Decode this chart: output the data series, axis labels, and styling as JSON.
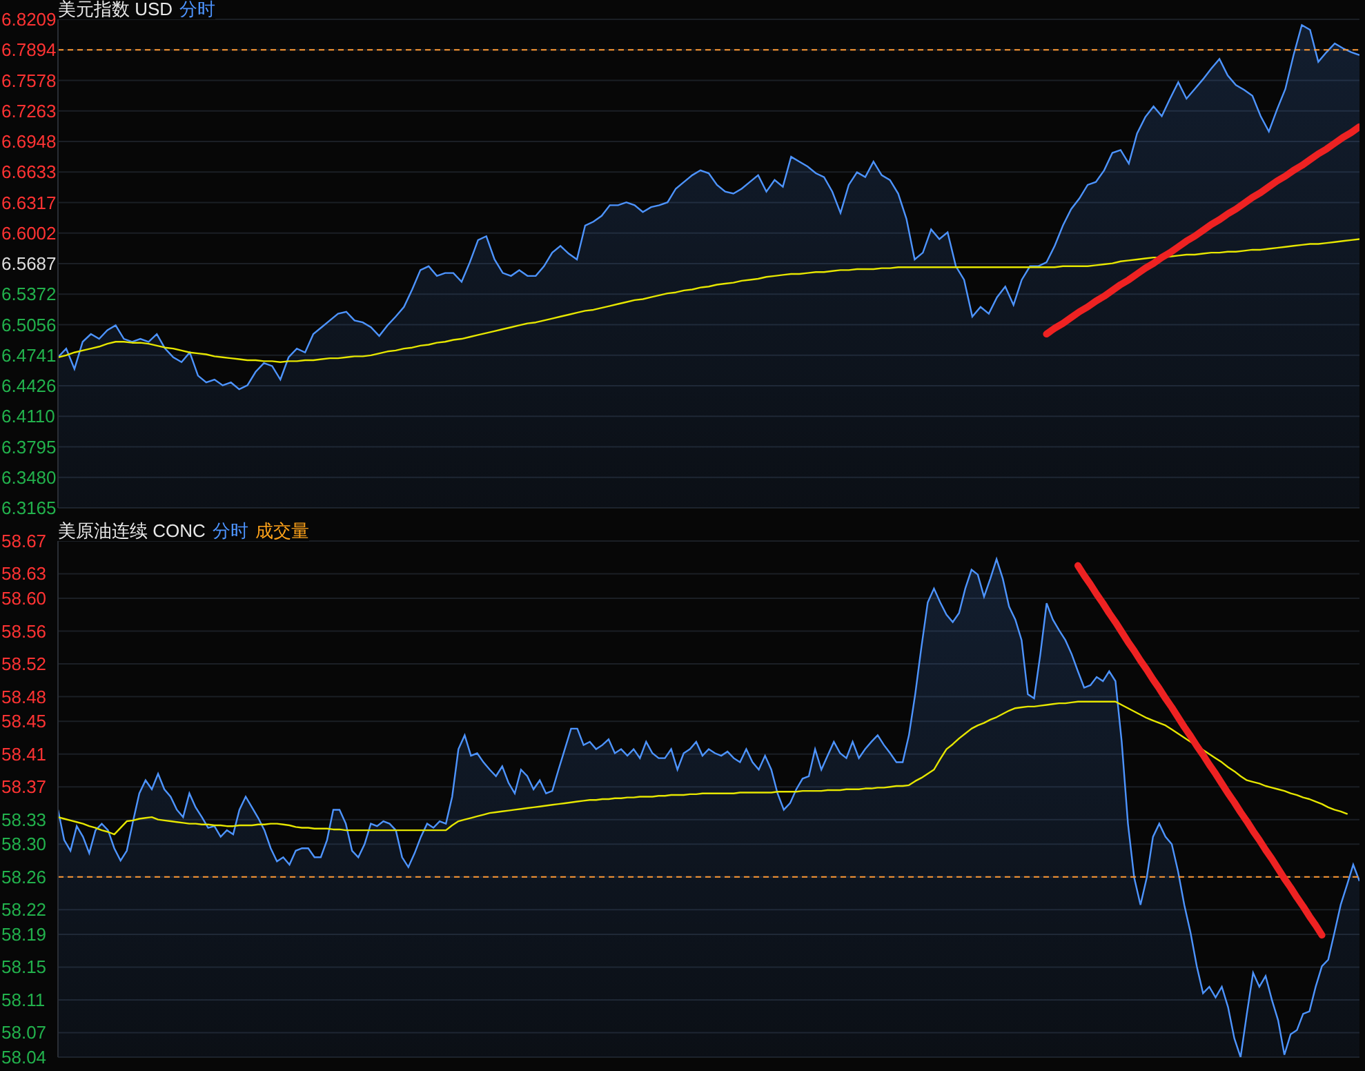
{
  "chart_data": [
    {
      "type": "line",
      "title": "美元指数 USD",
      "legend": "top left",
      "grid": "y",
      "tick_labels": "y",
      "categories": [
        null,
        null,
        null,
        null,
        null,
        null,
        null,
        null,
        null,
        null,
        null,
        null,
        null,
        null,
        null,
        null,
        null,
        null,
        null,
        null,
        null,
        null,
        null,
        null,
        null,
        null,
        null,
        null,
        null,
        null,
        null,
        null,
        null,
        null,
        null,
        null,
        null,
        null,
        null,
        null,
        null,
        null,
        null,
        null,
        null,
        null,
        null,
        null,
        null,
        null,
        null,
        null,
        null,
        null,
        null,
        null,
        null,
        null,
        null,
        null,
        null,
        null,
        null,
        null,
        null,
        null,
        null,
        null,
        null,
        null,
        null,
        null,
        null,
        null,
        null,
        null,
        null,
        null,
        null,
        null,
        null,
        null,
        null,
        null,
        null,
        null,
        null,
        null,
        null,
        null,
        null,
        null,
        null,
        null,
        null,
        null,
        null,
        null,
        null,
        null,
        null,
        null,
        null,
        null,
        null,
        null,
        null,
        null,
        null,
        null,
        null,
        null,
        null,
        null,
        null,
        null,
        null,
        null,
        null,
        null,
        null,
        null,
        null,
        null,
        null,
        null,
        null,
        null,
        null,
        null,
        null,
        null,
        null,
        null,
        null,
        null,
        null,
        null,
        null,
        null,
        null,
        null,
        null,
        null,
        null,
        null,
        null,
        null,
        null,
        null,
        null,
        null,
        null,
        null,
        null,
        null,
        null,
        null,
        null
      ],
      "series": [
        {
          "name": "分时",
          "type": "area",
          "color": "#4d94ff",
          "values": [
            6.472,
            6.481,
            6.46,
            6.488,
            6.496,
            6.491,
            6.5,
            6.505,
            6.491,
            6.488,
            6.491,
            6.488,
            6.496,
            6.481,
            6.472,
            6.467,
            6.477,
            6.453,
            6.446,
            6.449,
            6.443,
            6.446,
            6.439,
            6.443,
            6.457,
            6.466,
            6.463,
            6.449,
            6.472,
            6.481,
            6.477,
            6.496,
            6.503,
            6.51,
            6.517,
            6.519,
            6.51,
            6.508,
            6.503,
            6.494,
            6.505,
            6.514,
            6.524,
            6.542,
            6.562,
            6.566,
            6.556,
            6.559,
            6.559,
            6.55,
            6.57,
            6.593,
            6.597,
            6.573,
            6.559,
            6.556,
            6.562,
            6.556,
            6.556,
            6.566,
            6.58,
            6.587,
            6.579,
            6.573,
            6.608,
            6.612,
            6.618,
            6.629,
            6.629,
            6.632,
            6.629,
            6.622,
            6.627,
            6.629,
            6.632,
            6.646,
            6.653,
            6.66,
            6.665,
            6.662,
            6.65,
            6.643,
            6.641,
            6.646,
            6.653,
            6.66,
            6.643,
            6.655,
            6.648,
            6.679,
            6.674,
            6.669,
            6.662,
            6.658,
            6.643,
            6.621,
            6.65,
            6.663,
            6.658,
            6.674,
            6.66,
            6.655,
            6.641,
            6.615,
            6.573,
            6.58,
            6.604,
            6.594,
            6.601,
            6.566,
            6.552,
            6.514,
            6.524,
            6.517,
            6.534,
            6.545,
            6.526,
            6.552,
            6.566,
            6.566,
            6.57,
            6.587,
            6.608,
            6.625,
            6.636,
            6.65,
            6.653,
            6.665,
            6.683,
            6.686,
            6.672,
            6.703,
            6.72,
            6.731,
            6.721,
            6.739,
            6.756,
            6.739,
            6.749,
            6.759,
            6.77,
            6.78,
            6.763,
            6.753,
            6.748,
            6.742,
            6.721,
            6.705,
            6.728,
            6.749,
            6.784,
            6.815,
            6.81,
            6.777,
            6.787,
            6.796,
            6.791,
            6.787,
            6.784
          ]
        },
        {
          "type": "line",
          "color": "#e6e600",
          "values": [
            6.472,
            6.474,
            6.477,
            6.479,
            6.481,
            6.483,
            6.486,
            6.488,
            6.488,
            6.487,
            6.487,
            6.486,
            6.484,
            6.482,
            6.481,
            6.479,
            6.477,
            6.476,
            6.475,
            6.473,
            6.472,
            6.471,
            6.47,
            6.469,
            6.469,
            6.468,
            6.468,
            6.467,
            6.468,
            6.468,
            6.469,
            6.469,
            6.47,
            6.471,
            6.471,
            6.472,
            6.473,
            6.473,
            6.474,
            6.476,
            6.478,
            6.479,
            6.481,
            6.482,
            6.484,
            6.485,
            6.487,
            6.488,
            6.49,
            6.491,
            6.493,
            6.495,
            6.497,
            6.499,
            6.501,
            6.503,
            6.505,
            6.507,
            6.508,
            6.51,
            6.512,
            6.514,
            6.516,
            6.518,
            6.52,
            6.521,
            6.523,
            6.525,
            6.527,
            6.529,
            6.531,
            6.532,
            6.534,
            6.536,
            6.538,
            6.539,
            6.541,
            6.542,
            6.544,
            6.545,
            6.547,
            6.548,
            6.549,
            6.551,
            6.552,
            6.553,
            6.555,
            6.556,
            6.557,
            6.558,
            6.558,
            6.559,
            6.56,
            6.56,
            6.561,
            6.562,
            6.562,
            6.563,
            6.563,
            6.563,
            6.564,
            6.564,
            6.565,
            6.565,
            6.565,
            6.565,
            6.565,
            6.565,
            6.565,
            6.565,
            6.565,
            6.565,
            6.565,
            6.565,
            6.565,
            6.565,
            6.565,
            6.565,
            6.565,
            6.565,
            6.565,
            6.565,
            6.566,
            6.566,
            6.566,
            6.566,
            6.567,
            6.568,
            6.569,
            6.571,
            6.572,
            6.573,
            6.574,
            6.575,
            6.575,
            6.576,
            6.577,
            6.578,
            6.578,
            6.579,
            6.58,
            6.58,
            6.581,
            6.581,
            6.582,
            6.583,
            6.583,
            6.584,
            6.585,
            6.586,
            6.587,
            6.588,
            6.589,
            6.589,
            6.59,
            6.591,
            6.592,
            6.593,
            6.594
          ]
        },
        {
          "type": "line",
          "color": "#ee2222",
          "values": [
            null,
            null,
            null,
            null,
            null,
            null,
            null,
            null,
            null,
            null,
            null,
            null,
            null,
            null,
            null,
            null,
            null,
            null,
            null,
            null,
            null,
            null,
            null,
            null,
            null,
            null,
            null,
            null,
            null,
            null,
            null,
            null,
            null,
            null,
            null,
            null,
            null,
            null,
            null,
            null,
            null,
            null,
            null,
            null,
            null,
            null,
            null,
            null,
            null,
            null,
            null,
            null,
            null,
            null,
            null,
            null,
            null,
            null,
            null,
            null,
            null,
            null,
            null,
            null,
            null,
            null,
            null,
            null,
            null,
            null,
            null,
            null,
            null,
            null,
            null,
            null,
            null,
            null,
            null,
            null,
            null,
            null,
            null,
            null,
            null,
            null,
            null,
            null,
            null,
            null,
            null,
            null,
            null,
            null,
            null,
            null,
            null,
            null,
            null,
            null,
            null,
            null,
            null,
            null,
            null,
            null,
            null,
            null,
            null,
            null,
            null,
            null,
            null,
            null,
            null,
            null,
            null,
            null,
            null,
            null,
            6.496,
            6.502,
            6.507,
            6.513,
            6.519,
            6.524,
            6.53,
            6.535,
            6.541,
            6.547,
            6.552,
            6.558,
            6.564,
            6.569,
            6.575,
            6.58,
            6.586,
            6.592,
            6.597,
            6.603,
            6.609,
            6.614,
            6.62,
            6.625,
            6.631,
            6.637,
            6.642,
            6.648,
            6.654,
            6.659,
            6.665,
            6.67,
            6.676,
            6.682,
            6.687,
            6.693,
            6.699,
            6.704,
            6.71
          ]
        }
      ],
      "ylim": [
        6.3165,
        6.8209
      ],
      "yticks": [
        6.8209,
        6.7894,
        6.7578,
        6.7263,
        6.6948,
        6.6633,
        6.6317,
        6.6002,
        6.5687,
        6.5372,
        6.5056,
        6.4741,
        6.4426,
        {
          "value": 6.411,
          "label": "6.4110"
        },
        6.3795,
        {
          "value": 6.348,
          "label": "6.3480"
        },
        6.3165
      ],
      "ref_lines": [
        {
          "axis": "y",
          "value": 6.7894,
          "color": "#ff9933",
          "line_style": "dashed"
        }
      ]
    },
    {
      "type": "line",
      "title": "美原油连续 CONC",
      "legend": "top left",
      "grid": "y",
      "tick_labels": "y",
      "annotations": [
        "成交量"
      ],
      "categories": [
        null,
        null,
        null,
        null,
        null,
        null,
        null,
        null,
        null,
        null,
        null,
        null,
        null,
        null,
        null,
        null,
        null,
        null,
        null,
        null,
        null,
        null,
        null,
        null,
        null,
        null,
        null,
        null,
        null,
        null,
        null,
        null,
        null,
        null,
        null,
        null,
        null,
        null,
        null,
        null,
        null,
        null,
        null,
        null,
        null,
        null,
        null,
        null,
        null,
        null,
        null,
        null,
        null,
        null,
        null,
        null,
        null,
        null,
        null,
        null,
        null,
        null,
        null,
        null,
        null,
        null,
        null,
        null,
        null,
        null,
        null,
        null,
        null,
        null,
        null,
        null,
        null,
        null,
        null,
        null,
        null,
        null,
        null,
        null,
        null,
        null,
        null,
        null,
        null,
        null,
        null,
        null,
        null,
        null,
        null,
        null,
        null,
        null,
        null,
        null,
        null,
        null,
        null,
        null,
        null,
        null,
        null,
        null,
        null,
        null,
        null,
        null,
        null,
        null,
        null,
        null,
        null,
        null,
        null,
        null,
        null,
        null,
        null,
        null,
        null,
        null,
        null,
        null,
        null,
        null,
        null,
        null,
        null,
        null,
        null,
        null,
        null,
        null,
        null,
        null,
        null,
        null,
        null,
        null,
        null,
        null,
        null,
        null,
        null,
        null,
        null,
        null,
        null,
        null,
        null,
        null,
        null,
        null,
        null,
        null,
        null,
        null,
        null,
        null,
        null,
        null,
        null,
        null,
        null,
        null,
        null,
        null,
        null,
        null,
        null,
        null,
        null,
        null,
        null,
        null,
        null,
        null,
        null,
        null,
        null,
        null,
        null,
        null,
        null,
        null,
        null,
        null,
        null,
        null,
        null,
        null,
        null,
        null,
        null,
        null,
        null,
        null,
        null,
        null,
        null,
        null,
        null,
        null,
        null
      ],
      "series": [
        {
          "name": "分时",
          "type": "area",
          "color": "#4d94ff",
          "values": [
            58.342,
            58.305,
            58.292,
            58.322,
            58.309,
            58.289,
            58.317,
            58.325,
            58.317,
            58.295,
            58.28,
            58.292,
            58.328,
            58.362,
            58.378,
            58.367,
            58.386,
            58.367,
            58.358,
            58.342,
            58.333,
            58.362,
            58.345,
            58.333,
            58.32,
            58.322,
            58.309,
            58.317,
            58.312,
            58.342,
            58.358,
            58.345,
            58.332,
            58.317,
            58.295,
            58.279,
            58.284,
            58.275,
            58.292,
            58.295,
            58.295,
            58.284,
            58.284,
            58.305,
            58.342,
            58.342,
            58.325,
            58.292,
            58.284,
            58.3,
            58.325,
            58.322,
            58.328,
            58.325,
            58.317,
            58.284,
            58.272,
            58.289,
            58.309,
            58.325,
            58.32,
            58.328,
            58.325,
            58.358,
            58.416,
            58.433,
            58.408,
            58.411,
            58.4,
            58.391,
            58.383,
            58.395,
            58.375,
            58.362,
            58.391,
            58.383,
            58.367,
            58.378,
            58.362,
            58.365,
            58.391,
            58.416,
            58.441,
            58.441,
            58.421,
            58.425,
            58.416,
            58.421,
            58.428,
            58.411,
            58.416,
            58.408,
            58.416,
            58.405,
            58.425,
            58.411,
            58.405,
            58.405,
            58.416,
            58.391,
            58.411,
            58.416,
            58.425,
            58.408,
            58.416,
            58.411,
            58.408,
            58.413,
            58.405,
            58.4,
            58.416,
            58.4,
            58.391,
            58.408,
            58.391,
            58.362,
            58.342,
            58.35,
            58.367,
            58.38,
            58.383,
            58.416,
            58.391,
            58.408,
            58.425,
            58.411,
            58.405,
            58.425,
            58.405,
            58.416,
            58.425,
            58.433,
            58.421,
            58.411,
            58.4,
            58.4,
            58.433,
            58.483,
            58.541,
            58.595,
            58.612,
            58.595,
            58.58,
            58.571,
            58.582,
            58.612,
            58.635,
            58.629,
            58.602,
            58.624,
            58.648,
            58.624,
            58.59,
            58.574,
            58.549,
            58.483,
            58.478,
            58.532,
            58.594,
            58.574,
            58.561,
            58.549,
            58.532,
            58.511,
            58.491,
            58.494,
            58.504,
            58.499,
            58.511,
            58.499,
            58.425,
            58.325,
            58.259,
            58.226,
            58.259,
            58.309,
            58.325,
            58.309,
            58.3,
            58.267,
            58.226,
            58.192,
            58.151,
            58.118,
            58.126,
            58.113,
            58.126,
            58.101,
            58.063,
            58.04,
            58.093,
            58.143,
            58.126,
            58.139,
            58.11,
            58.085,
            58.043,
            58.068,
            58.073,
            58.093,
            58.096,
            58.126,
            58.151,
            58.159,
            58.192,
            58.226,
            58.25,
            58.275,
            58.255
          ]
        },
        {
          "type": "line",
          "color": "#e6e600",
          "values": [
            58.333,
            58.331,
            58.329,
            58.327,
            58.325,
            58.322,
            58.32,
            58.317,
            58.315,
            58.312,
            58.32,
            58.328,
            58.329,
            58.331,
            58.332,
            58.333,
            58.33,
            58.329,
            58.328,
            58.327,
            58.326,
            58.325,
            58.325,
            58.324,
            58.324,
            58.323,
            58.323,
            58.322,
            58.322,
            58.323,
            58.323,
            58.323,
            58.324,
            58.324,
            58.325,
            58.325,
            58.324,
            58.323,
            58.321,
            58.32,
            58.32,
            58.319,
            58.319,
            58.319,
            58.318,
            58.318,
            58.317,
            58.317,
            58.317,
            58.317,
            58.317,
            58.317,
            58.317,
            58.317,
            58.317,
            58.317,
            58.317,
            58.317,
            58.317,
            58.317,
            58.317,
            58.317,
            58.317,
            58.323,
            58.328,
            58.33,
            58.332,
            58.334,
            58.336,
            58.338,
            58.339,
            58.34,
            58.341,
            58.342,
            58.343,
            58.344,
            58.345,
            58.346,
            58.347,
            58.348,
            58.349,
            58.35,
            58.351,
            58.352,
            58.353,
            58.354,
            58.354,
            58.355,
            58.355,
            58.356,
            58.356,
            58.357,
            58.357,
            58.358,
            58.358,
            58.358,
            58.359,
            58.359,
            58.36,
            58.36,
            58.36,
            58.361,
            58.361,
            58.362,
            58.362,
            58.362,
            58.362,
            58.362,
            58.362,
            58.363,
            58.363,
            58.363,
            58.363,
            58.363,
            58.363,
            58.364,
            58.364,
            58.364,
            58.364,
            58.365,
            58.365,
            58.365,
            58.365,
            58.366,
            58.366,
            58.366,
            58.367,
            58.367,
            58.367,
            58.368,
            58.368,
            58.369,
            58.369,
            58.37,
            58.371,
            58.371,
            58.372,
            58.377,
            58.381,
            58.386,
            58.391,
            58.404,
            58.416,
            58.422,
            58.429,
            58.435,
            58.441,
            58.445,
            58.448,
            58.452,
            58.455,
            58.459,
            58.463,
            58.466,
            58.467,
            58.468,
            58.468,
            58.469,
            58.47,
            58.471,
            58.472,
            58.472,
            58.473,
            58.474,
            58.474,
            58.474,
            58.474,
            58.474,
            58.474,
            58.474,
            58.47,
            58.466,
            58.462,
            58.458,
            58.454,
            58.451,
            58.448,
            58.445,
            58.44,
            58.435,
            58.43,
            58.425,
            58.42,
            58.415,
            58.41,
            58.405,
            58.4,
            58.394,
            58.389,
            58.383,
            58.378,
            58.376,
            58.374,
            58.371,
            58.369,
            58.367,
            58.365,
            58.362,
            58.36,
            58.357,
            58.355,
            58.352,
            58.349,
            58.345,
            58.342,
            58.34,
            58.337,
            null,
            null
          ]
        },
        {
          "type": "line",
          "color": "#ee2222",
          "values": [
            null,
            null,
            null,
            null,
            null,
            null,
            null,
            null,
            null,
            null,
            null,
            null,
            null,
            null,
            null,
            null,
            null,
            null,
            null,
            null,
            null,
            null,
            null,
            null,
            null,
            null,
            null,
            null,
            null,
            null,
            null,
            null,
            null,
            null,
            null,
            null,
            null,
            null,
            null,
            null,
            null,
            null,
            null,
            null,
            null,
            null,
            null,
            null,
            null,
            null,
            null,
            null,
            null,
            null,
            null,
            null,
            null,
            null,
            null,
            null,
            null,
            null,
            null,
            null,
            null,
            null,
            null,
            null,
            null,
            null,
            null,
            null,
            null,
            null,
            null,
            null,
            null,
            null,
            null,
            null,
            null,
            null,
            null,
            null,
            null,
            null,
            null,
            null,
            null,
            null,
            null,
            null,
            null,
            null,
            null,
            null,
            null,
            null,
            null,
            null,
            null,
            null,
            null,
            null,
            null,
            null,
            null,
            null,
            null,
            null,
            null,
            null,
            null,
            null,
            null,
            null,
            null,
            null,
            null,
            null,
            null,
            null,
            null,
            null,
            null,
            null,
            null,
            null,
            null,
            null,
            null,
            null,
            null,
            null,
            null,
            null,
            null,
            null,
            null,
            null,
            null,
            null,
            null,
            null,
            null,
            null,
            null,
            null,
            null,
            null,
            null,
            null,
            null,
            null,
            null,
            null,
            null,
            null,
            null,
            null,
            null,
            null,
            null,
            58.64,
            58.628,
            58.617,
            58.605,
            58.594,
            58.582,
            58.571,
            58.559,
            58.547,
            58.536,
            58.524,
            58.513,
            58.501,
            58.49,
            58.478,
            58.467,
            58.455,
            58.443,
            58.432,
            58.42,
            58.409,
            58.397,
            58.386,
            58.374,
            58.362,
            58.351,
            58.339,
            58.328,
            58.316,
            58.305,
            58.293,
            58.282,
            58.27,
            58.258,
            58.247,
            58.235,
            58.224,
            58.212,
            58.201,
            58.189,
            null,
            null,
            null,
            null,
            null,
            null
          ]
        }
      ],
      "ylim": [
        58.04,
        58.67
      ],
      "yticks": [
        58.67,
        58.63,
        {
          "value": 58.6,
          "label": "58.60"
        },
        58.56,
        58.52,
        58.48,
        58.45,
        58.41,
        58.37,
        58.33,
        {
          "value": 58.3,
          "label": "58.30"
        },
        58.26,
        58.22,
        58.19,
        58.15,
        58.11,
        58.07,
        58.04
      ],
      "ref_lines": [
        {
          "axis": "y",
          "value": 58.26,
          "color": "#ff9933",
          "line_style": "dashed"
        }
      ]
    }
  ]
}
